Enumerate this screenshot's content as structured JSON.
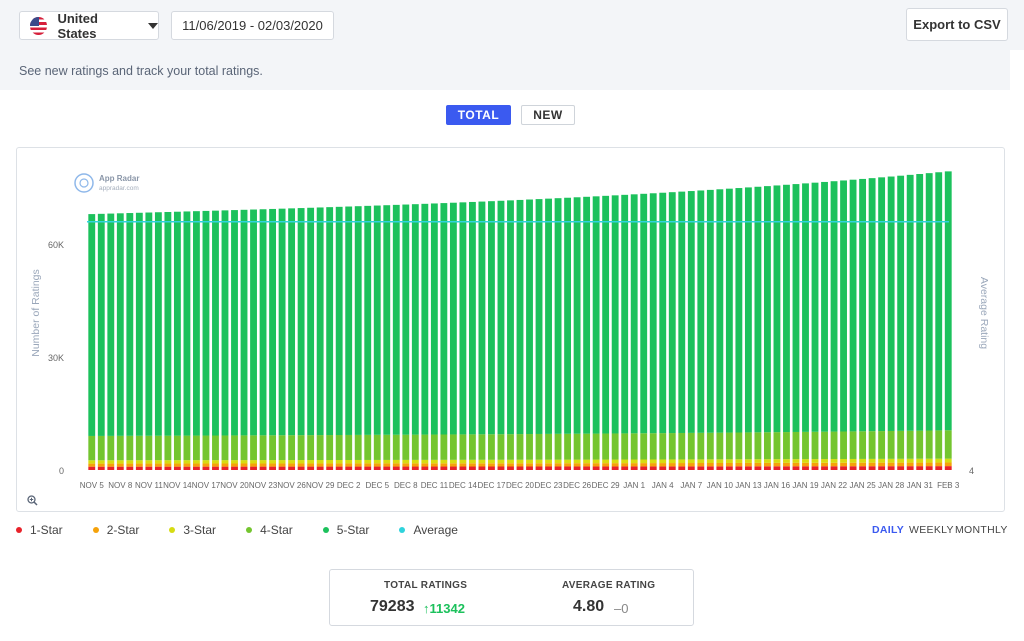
{
  "header": {
    "country": "United States",
    "date_range": "11/06/2019 - 02/03/2020",
    "export_label": "Export to CSV"
  },
  "subtitle": "See new ratings and track your total ratings.",
  "toggles": {
    "total": "TOTAL",
    "new": "NEW"
  },
  "watermark": {
    "name": "App Radar",
    "url": "appradar.com"
  },
  "colors": {
    "star1": "#e8222a",
    "star2": "#f5a20a",
    "star3": "#d6dc12",
    "star4": "#74c52f",
    "star5": "#1cc15c",
    "average": "#2fd3dc",
    "accent": "#3b5af0"
  },
  "legend": [
    "1-Star",
    "2-Star",
    "3-Star",
    "4-Star",
    "5-Star",
    "Average"
  ],
  "periods": {
    "daily": "DAILY",
    "weekly": "WEEKLY",
    "monthly": "MONTHLY"
  },
  "stats": {
    "total_label": "TOTAL RATINGS",
    "total_value": "79283",
    "total_change": "11342",
    "avg_label": "AVERAGE RATING",
    "avg_value": "4.80",
    "avg_change": "0"
  },
  "chart_data": {
    "type": "bar",
    "stacked": true,
    "xlabel": "",
    "ylabel": "Number of Ratings",
    "y2label": "Average Rating",
    "ylim": [
      0,
      80000
    ],
    "yticks": [
      0,
      30000,
      60000
    ],
    "ytick_labels": [
      "0",
      "30K",
      "60K"
    ],
    "y2ticks": [
      "4"
    ],
    "x_tick_labels": [
      "NOV 5",
      "NOV 8",
      "NOV 11",
      "NOV 14",
      "NOV 17",
      "NOV 20",
      "NOV 23",
      "NOV 26",
      "NOV 29",
      "DEC 2",
      "DEC 5",
      "DEC 8",
      "DEC 11",
      "DEC 14",
      "DEC 17",
      "DEC 20",
      "DEC 23",
      "DEC 26",
      "DEC 29",
      "JAN 1",
      "JAN 4",
      "JAN 7",
      "JAN 10",
      "JAN 13",
      "JAN 16",
      "JAN 19",
      "JAN 22",
      "JAN 25",
      "JAN 28",
      "JAN 31",
      "FEB 3"
    ],
    "start_date": "2019-11-05",
    "num_days": 91,
    "total_start": 67941,
    "total_end": 79283,
    "series": [
      {
        "name": "1-Star",
        "fraction": 0.013
      },
      {
        "name": "2-Star",
        "fraction": 0.012
      },
      {
        "name": "3-Star",
        "fraction": 0.013
      },
      {
        "name": "4-Star",
        "fraction": 0.095
      },
      {
        "name": "5-Star",
        "fraction": 0.867
      }
    ],
    "average_rating": 4.8,
    "average_line_value": 65900
  }
}
